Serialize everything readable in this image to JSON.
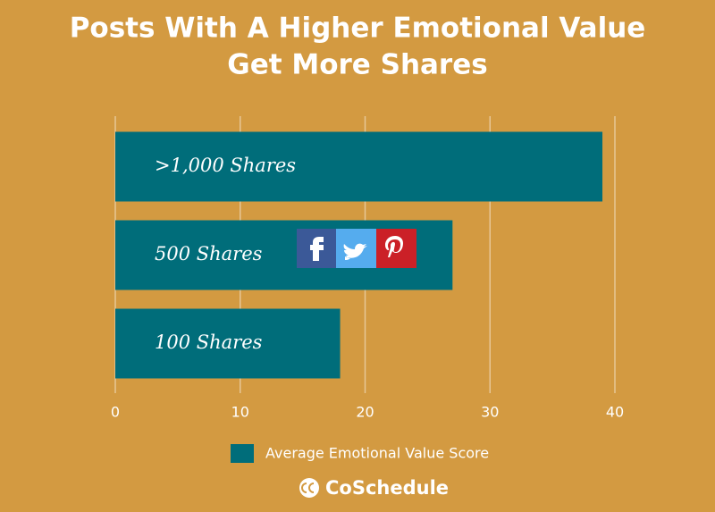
{
  "chart_data": {
    "type": "barh",
    "title": [
      "Posts With A Higher Emotional Value",
      "Get More Shares"
    ],
    "categories": [
      ">1,000 Shares",
      "500 Shares",
      "100 Shares"
    ],
    "series": [
      {
        "name": "Average Emotional Value Score",
        "color": "#006d7a",
        "values": [
          39,
          27,
          18
        ]
      }
    ],
    "xlim": [
      0,
      40
    ],
    "xticks": [
      0,
      10,
      20,
      30,
      40
    ],
    "grid": true,
    "legend": "bottom",
    "brand": "CoSchedule"
  }
}
